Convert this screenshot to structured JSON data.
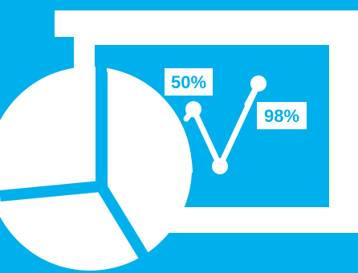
{
  "colors": {
    "background": "#00b0ec",
    "foreground": "#ffffff"
  },
  "icon": "presentation-board-with-pie-chart-and-line-chart",
  "labels": {
    "left_percent": "50%",
    "right_percent": "98%"
  }
}
